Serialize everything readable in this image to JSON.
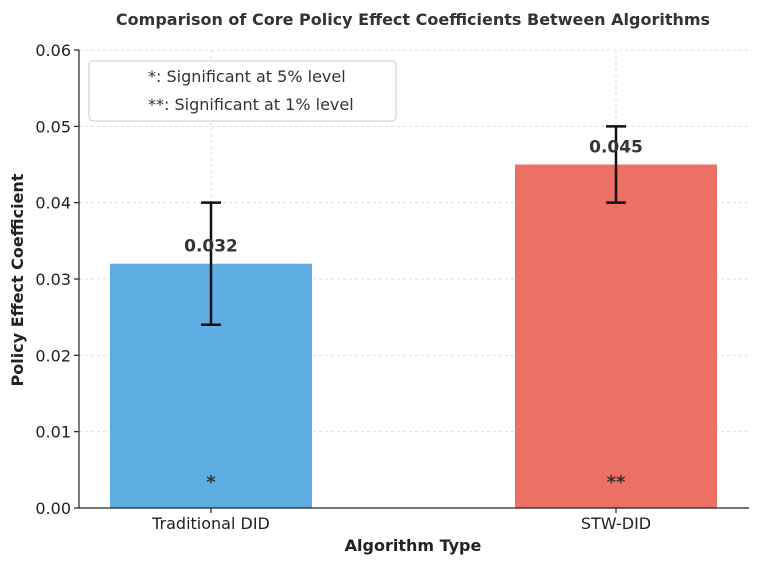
{
  "chart_data": {
    "type": "bar",
    "title": "Comparison of Core Policy Effect Coefficients Between Algorithms",
    "xlabel": "Algorithm Type",
    "ylabel": "Policy Effect Coefficient",
    "ylim": [
      0,
      0.06
    ],
    "yticks": [
      "0.00",
      "0.01",
      "0.02",
      "0.03",
      "0.04",
      "0.05",
      "0.06"
    ],
    "grid": true,
    "categories": [
      "Traditional DID",
      "STW-DID"
    ],
    "values": [
      0.032,
      0.045
    ],
    "value_labels": [
      "0.032",
      "0.045"
    ],
    "error_bars": [
      {
        "lower": 0.024,
        "upper": 0.04
      },
      {
        "lower": 0.04,
        "upper": 0.05
      }
    ],
    "significance": [
      "*",
      "**"
    ],
    "colors": [
      "#5DADE2",
      "#EC7063"
    ],
    "legend": {
      "position": "top-left",
      "entries": [
        "*: Significant at 5% level",
        "**: Significant at 1% level"
      ]
    }
  }
}
